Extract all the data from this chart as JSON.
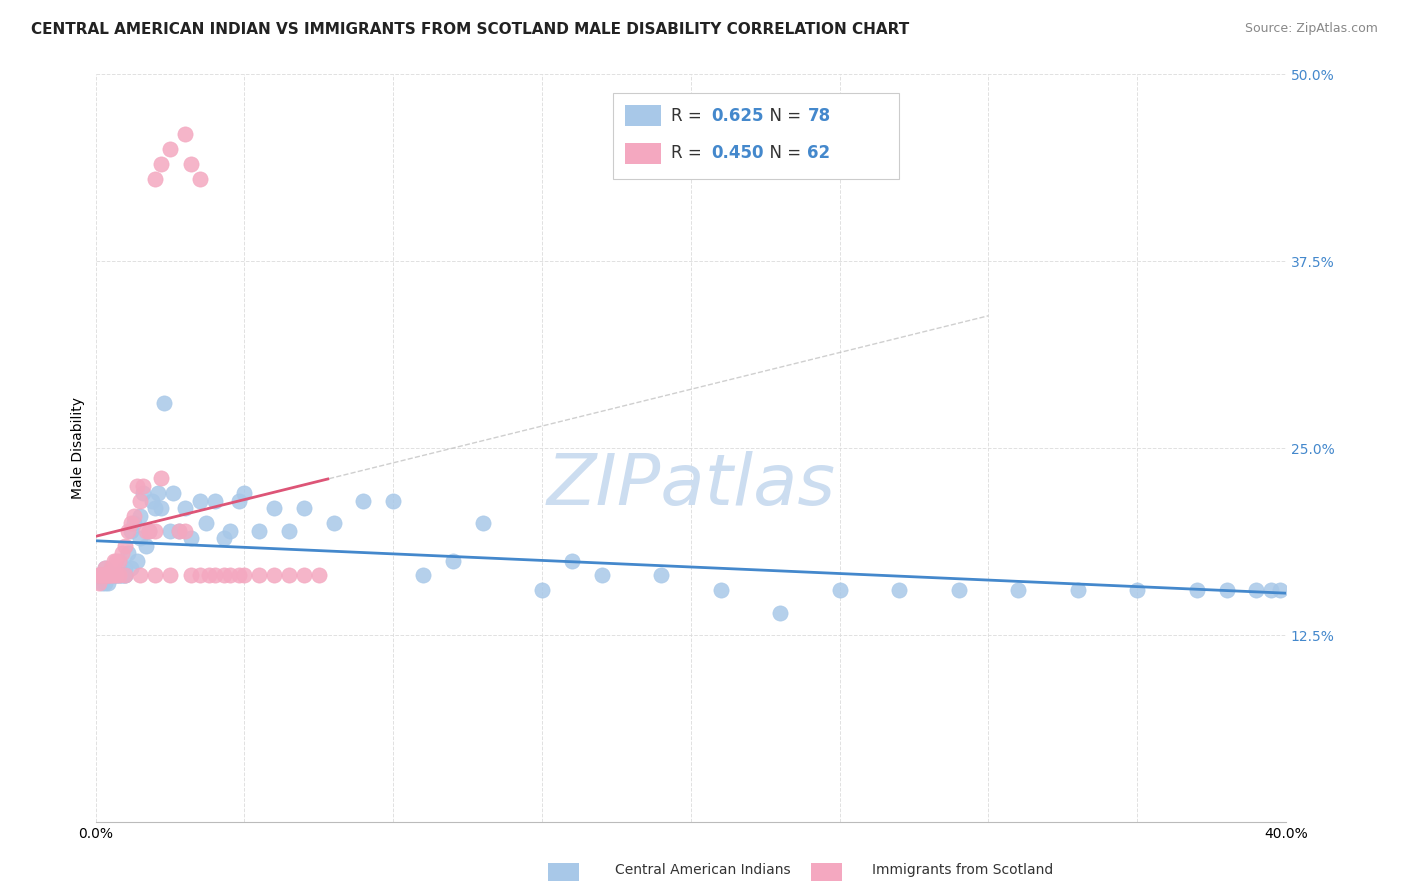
{
  "title": "CENTRAL AMERICAN INDIAN VS IMMIGRANTS FROM SCOTLAND MALE DISABILITY CORRELATION CHART",
  "source": "Source: ZipAtlas.com",
  "ylabel": "Male Disability",
  "watermark": "ZIPatlas",
  "blue_R": 0.625,
  "blue_N": 78,
  "pink_R": 0.45,
  "pink_N": 62,
  "blue_color": "#a8c8e8",
  "pink_color": "#f4a8c0",
  "blue_line_color": "#4488cc",
  "pink_line_color": "#dd5577",
  "xmin": 0.0,
  "xmax": 0.4,
  "ymin": 0.0,
  "ymax": 0.5,
  "xticks": [
    0.0,
    0.05,
    0.1,
    0.15,
    0.2,
    0.25,
    0.3,
    0.35,
    0.4
  ],
  "yticks": [
    0.0,
    0.125,
    0.25,
    0.375,
    0.5
  ],
  "ytick_labels_right": [
    "",
    "12.5%",
    "25.0%",
    "37.5%",
    "50.0%"
  ],
  "blue_scatter_x": [
    0.002,
    0.002,
    0.002,
    0.003,
    0.003,
    0.003,
    0.003,
    0.004,
    0.004,
    0.005,
    0.005,
    0.005,
    0.006,
    0.006,
    0.006,
    0.007,
    0.007,
    0.008,
    0.008,
    0.009,
    0.009,
    0.01,
    0.01,
    0.01,
    0.011,
    0.012,
    0.012,
    0.013,
    0.014,
    0.015,
    0.015,
    0.016,
    0.017,
    0.018,
    0.019,
    0.02,
    0.021,
    0.022,
    0.023,
    0.025,
    0.026,
    0.028,
    0.03,
    0.032,
    0.035,
    0.037,
    0.04,
    0.043,
    0.045,
    0.048,
    0.05,
    0.055,
    0.06,
    0.065,
    0.07,
    0.08,
    0.09,
    0.1,
    0.11,
    0.12,
    0.13,
    0.15,
    0.16,
    0.17,
    0.19,
    0.21,
    0.23,
    0.25,
    0.27,
    0.29,
    0.31,
    0.33,
    0.35,
    0.37,
    0.38,
    0.39,
    0.395,
    0.398
  ],
  "blue_scatter_y": [
    0.16,
    0.165,
    0.165,
    0.16,
    0.165,
    0.17,
    0.165,
    0.16,
    0.165,
    0.165,
    0.165,
    0.165,
    0.165,
    0.165,
    0.165,
    0.165,
    0.165,
    0.165,
    0.165,
    0.165,
    0.165,
    0.165,
    0.165,
    0.17,
    0.18,
    0.195,
    0.17,
    0.2,
    0.175,
    0.19,
    0.205,
    0.22,
    0.185,
    0.195,
    0.215,
    0.21,
    0.22,
    0.21,
    0.28,
    0.195,
    0.22,
    0.195,
    0.21,
    0.19,
    0.215,
    0.2,
    0.215,
    0.19,
    0.195,
    0.215,
    0.22,
    0.195,
    0.21,
    0.195,
    0.21,
    0.2,
    0.215,
    0.215,
    0.165,
    0.175,
    0.2,
    0.155,
    0.175,
    0.165,
    0.165,
    0.155,
    0.14,
    0.155,
    0.155,
    0.155,
    0.155,
    0.155,
    0.155,
    0.155,
    0.155,
    0.155,
    0.155,
    0.155
  ],
  "pink_scatter_x": [
    0.001,
    0.001,
    0.001,
    0.001,
    0.001,
    0.002,
    0.002,
    0.002,
    0.002,
    0.003,
    0.003,
    0.003,
    0.003,
    0.004,
    0.004,
    0.004,
    0.005,
    0.005,
    0.005,
    0.006,
    0.006,
    0.007,
    0.007,
    0.008,
    0.008,
    0.009,
    0.01,
    0.01,
    0.011,
    0.012,
    0.013,
    0.014,
    0.015,
    0.015,
    0.016,
    0.017,
    0.018,
    0.02,
    0.02,
    0.022,
    0.025,
    0.028,
    0.03,
    0.032,
    0.035,
    0.038,
    0.04,
    0.043,
    0.045,
    0.048,
    0.05,
    0.055,
    0.06,
    0.065,
    0.07,
    0.075,
    0.02,
    0.022,
    0.025,
    0.03,
    0.032,
    0.035
  ],
  "pink_scatter_y": [
    0.16,
    0.165,
    0.165,
    0.165,
    0.165,
    0.165,
    0.165,
    0.165,
    0.165,
    0.165,
    0.165,
    0.17,
    0.165,
    0.165,
    0.165,
    0.165,
    0.17,
    0.165,
    0.165,
    0.175,
    0.165,
    0.175,
    0.165,
    0.175,
    0.165,
    0.18,
    0.185,
    0.165,
    0.195,
    0.2,
    0.205,
    0.225,
    0.215,
    0.165,
    0.225,
    0.195,
    0.195,
    0.195,
    0.165,
    0.23,
    0.165,
    0.195,
    0.195,
    0.165,
    0.165,
    0.165,
    0.165,
    0.165,
    0.165,
    0.165,
    0.165,
    0.165,
    0.165,
    0.165,
    0.165,
    0.165,
    0.43,
    0.44,
    0.45,
    0.46,
    0.44,
    0.43
  ],
  "title_fontsize": 11,
  "axis_label_fontsize": 10,
  "tick_fontsize": 10,
  "legend_fontsize": 12,
  "watermark_fontsize": 52,
  "watermark_color": "#ccddf0",
  "background_color": "#ffffff",
  "grid_color": "#dddddd",
  "source_fontsize": 9
}
